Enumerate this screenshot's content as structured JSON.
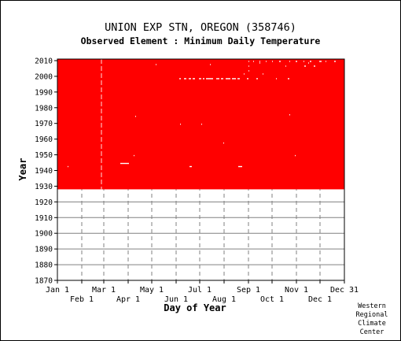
{
  "chart_data": {
    "type": "heatmap",
    "title": "UNION EXP STN, OREGON   (358746)",
    "subtitle": "Observed Element : Minimum Daily Temperature",
    "xlabel": "Day of Year",
    "ylabel": "Year",
    "ylim": [
      1870,
      2011
    ],
    "xlim": [
      1,
      366
    ],
    "grid": true,
    "colors": {
      "data": "#ff0000",
      "missing": "#ffffff",
      "grid": "#808080"
    },
    "y_ticks": [
      1870,
      1880,
      1890,
      1900,
      1910,
      1920,
      1930,
      1940,
      1950,
      1960,
      1970,
      1980,
      1990,
      2000,
      2010
    ],
    "x_ticks_top": [
      {
        "label": "Jan 1",
        "day": 1
      },
      {
        "label": "Mar 1",
        "day": 60
      },
      {
        "label": "May 1",
        "day": 121
      },
      {
        "label": "Jul 1",
        "day": 182
      },
      {
        "label": "Sep 1",
        "day": 244
      },
      {
        "label": "Nov 1",
        "day": 305
      },
      {
        "label": "Dec 31",
        "day": 366
      }
    ],
    "x_ticks_bottom": [
      {
        "label": "Feb 1",
        "day": 32
      },
      {
        "label": "Apr 1",
        "day": 91
      },
      {
        "label": "Jun 1",
        "day": 152
      },
      {
        "label": "Aug 1",
        "day": 213
      },
      {
        "label": "Oct 1",
        "day": 274
      },
      {
        "label": "Dec 1",
        "day": 335
      }
    ],
    "coverage": {
      "start_year": 1928,
      "end_year": 2010,
      "first_day": 1,
      "last_day": 366
    },
    "missing_days": [
      {
        "year": 2009,
        "days": [
          [
            244,
            245
          ],
          [
            250,
            251
          ],
          [
            258,
            259
          ],
          [
            266,
            267
          ],
          [
            274,
            275
          ],
          [
            283,
            285
          ],
          [
            296,
            297
          ],
          [
            304,
            306
          ],
          [
            314,
            315
          ],
          [
            322,
            324
          ],
          [
            334,
            337
          ],
          [
            342,
            343
          ],
          [
            353,
            355
          ]
        ]
      },
      {
        "year": 2008,
        "days": [
          [
            258,
            259
          ],
          [
            320,
            321
          ]
        ]
      },
      {
        "year": 2007,
        "days": [
          [
            126,
            127
          ],
          [
            195,
            196
          ]
        ]
      },
      {
        "year": 2006,
        "days": [
          [
            244,
            245
          ],
          [
            291,
            292
          ],
          [
            315,
            317
          ],
          [
            327,
            329
          ]
        ]
      },
      {
        "year": 2003,
        "days": [
          [
            244,
            245
          ]
        ]
      },
      {
        "year": 2001,
        "days": [
          [
            238,
            239
          ],
          [
            262,
            263
          ]
        ]
      },
      {
        "year": 1998,
        "days": [
          [
            156,
            158
          ],
          [
            162,
            165
          ],
          [
            168,
            171
          ],
          [
            173,
            176
          ],
          [
            181,
            184
          ],
          [
            186,
            188
          ],
          [
            190,
            199
          ],
          [
            203,
            207
          ],
          [
            209,
            212
          ],
          [
            215,
            221
          ],
          [
            223,
            228
          ],
          [
            230,
            233
          ],
          [
            242,
            244
          ],
          [
            254,
            256
          ],
          [
            279,
            280
          ],
          [
            294,
            296
          ]
        ]
      },
      {
        "year": 1975,
        "days": [
          [
            296,
            297
          ]
        ]
      },
      {
        "year": 1974,
        "days": [
          [
            100,
            101
          ]
        ]
      },
      {
        "year": 1969,
        "days": [
          [
            157,
            158
          ],
          [
            184,
            185
          ]
        ]
      },
      {
        "year": 1957,
        "days": [
          [
            212,
            213
          ]
        ]
      },
      {
        "year": 1949,
        "days": [
          [
            98,
            99
          ],
          [
            303,
            304
          ]
        ]
      },
      {
        "year": 1944,
        "days": [
          [
            81,
            92
          ]
        ]
      },
      {
        "year": 1942,
        "days": [
          [
            14,
            15
          ],
          [
            169,
            172
          ],
          [
            231,
            236
          ]
        ]
      }
    ],
    "missing_column_day": 57
  },
  "credit": {
    "line1": "Western",
    "line2": "Regional",
    "line3": "Climate",
    "line4": "Center"
  }
}
